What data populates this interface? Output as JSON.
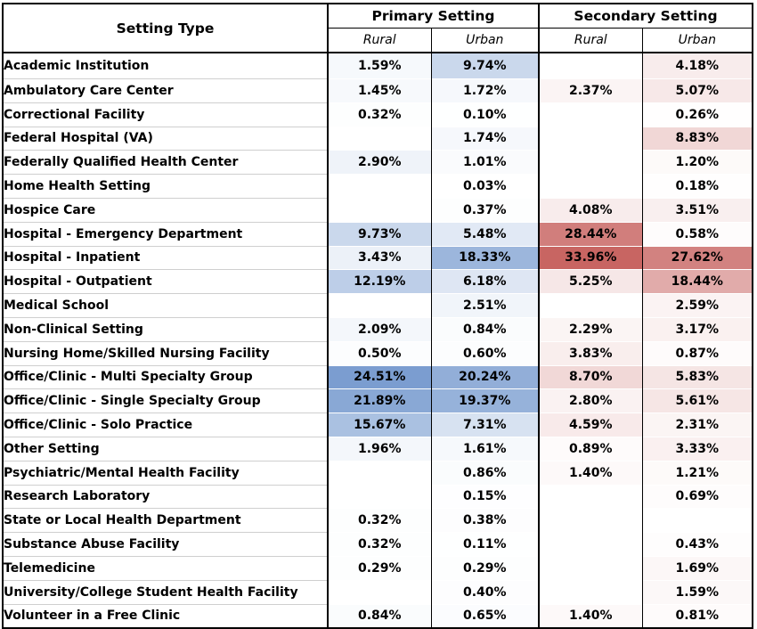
{
  "header": {
    "setting_type": "Setting Type",
    "groups": [
      "Primary Setting",
      "Secondary Setting"
    ],
    "subcolumns": [
      "Rural",
      "Urban",
      "Rural",
      "Urban"
    ]
  },
  "chart_data": {
    "type": "table",
    "columns": [
      "Primary Setting - Rural",
      "Primary Setting - Urban",
      "Secondary Setting - Rural",
      "Secondary Setting - Urban"
    ],
    "colors": {
      "primary": "#6f95cc",
      "secondary": "#c0504d"
    },
    "rows": [
      {
        "label": "Academic Institution",
        "values": [
          "1.59%",
          "9.74%",
          "",
          "4.18%"
        ]
      },
      {
        "label": "Ambulatory Care Center",
        "values": [
          "1.45%",
          "1.72%",
          "2.37%",
          "5.07%"
        ]
      },
      {
        "label": "Correctional Facility",
        "values": [
          "0.32%",
          "0.10%",
          "",
          "0.26%"
        ]
      },
      {
        "label": "Federal Hospital (VA)",
        "values": [
          "",
          "1.74%",
          "",
          "8.83%"
        ]
      },
      {
        "label": "Federally Qualified Health Center",
        "values": [
          "2.90%",
          "1.01%",
          "",
          "1.20%"
        ]
      },
      {
        "label": "Home Health Setting",
        "values": [
          "",
          "0.03%",
          "",
          "0.18%"
        ]
      },
      {
        "label": "Hospice Care",
        "values": [
          "",
          "0.37%",
          "4.08%",
          "3.51%"
        ]
      },
      {
        "label": "Hospital - Emergency Department",
        "values": [
          "9.73%",
          "5.48%",
          "28.44%",
          "0.58%"
        ]
      },
      {
        "label": "Hospital - Inpatient",
        "values": [
          "3.43%",
          "18.33%",
          "33.96%",
          "27.62%"
        ]
      },
      {
        "label": "Hospital - Outpatient",
        "values": [
          "12.19%",
          "6.18%",
          "5.25%",
          "18.44%"
        ]
      },
      {
        "label": "Medical School",
        "values": [
          "",
          "2.51%",
          "",
          "2.59%"
        ]
      },
      {
        "label": "Non-Clinical Setting",
        "values": [
          "2.09%",
          "0.84%",
          "2.29%",
          "3.17%"
        ]
      },
      {
        "label": "Nursing Home/Skilled Nursing Facility",
        "values": [
          "0.50%",
          "0.60%",
          "3.83%",
          "0.87%"
        ]
      },
      {
        "label": "Office/Clinic - Multi Specialty Group",
        "values": [
          "24.51%",
          "20.24%",
          "8.70%",
          "5.83%"
        ]
      },
      {
        "label": "Office/Clinic - Single Specialty Group",
        "values": [
          "21.89%",
          "19.37%",
          "2.80%",
          "5.61%"
        ]
      },
      {
        "label": "Office/Clinic - Solo Practice",
        "values": [
          "15.67%",
          "7.31%",
          "4.59%",
          "2.31%"
        ]
      },
      {
        "label": "Other Setting",
        "values": [
          "1.96%",
          "1.61%",
          "0.89%",
          "3.33%"
        ]
      },
      {
        "label": "Psychiatric/Mental Health Facility",
        "values": [
          "",
          "0.86%",
          "1.40%",
          "1.21%"
        ]
      },
      {
        "label": "Research Laboratory",
        "values": [
          "",
          "0.15%",
          "",
          "0.69%"
        ]
      },
      {
        "label": "State or Local Health Department",
        "values": [
          "0.32%",
          "0.38%",
          "",
          ""
        ]
      },
      {
        "label": "Substance Abuse Facility",
        "values": [
          "0.32%",
          "0.11%",
          "",
          "0.43%"
        ]
      },
      {
        "label": "Telemedicine",
        "values": [
          "0.29%",
          "0.29%",
          "",
          "1.69%"
        ]
      },
      {
        "label": "University/College Student Health Facility",
        "values": [
          "",
          "0.40%",
          "",
          "1.59%"
        ]
      },
      {
        "label": "Volunteer in a Free Clinic",
        "values": [
          "0.84%",
          "0.65%",
          "1.40%",
          "0.81%"
        ]
      }
    ]
  }
}
